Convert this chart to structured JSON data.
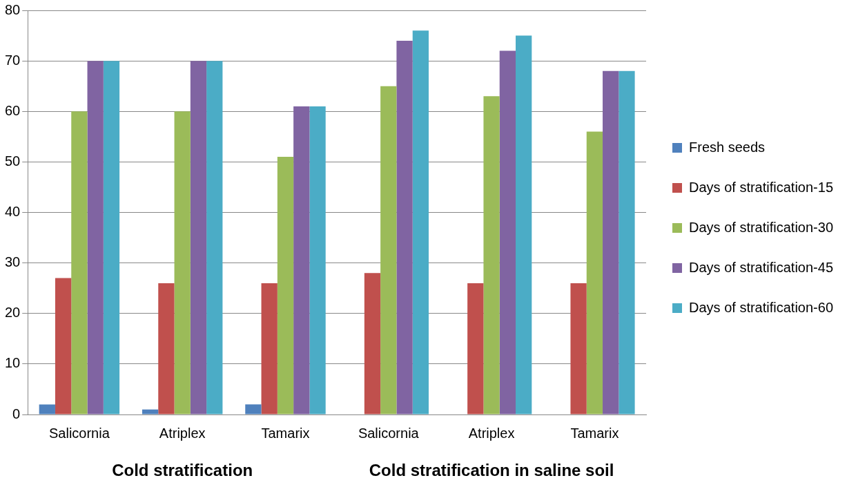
{
  "chart_data": {
    "type": "bar",
    "categories": [
      "Salicornia",
      "Atriplex",
      "Tamarix",
      "Salicornia",
      "Atriplex",
      "Tamarix"
    ],
    "series": [
      {
        "name": "Fresh seeds",
        "color": "#4f81bd",
        "values": [
          2,
          1,
          2,
          0,
          0,
          0
        ]
      },
      {
        "name": "Days of stratification-15",
        "color": "#c0504d",
        "values": [
          27,
          26,
          26,
          28,
          26,
          26
        ]
      },
      {
        "name": "Days of stratification-30",
        "color": "#9bbb59",
        "values": [
          60,
          60,
          51,
          65,
          63,
          56
        ]
      },
      {
        "name": "Days of stratification-45",
        "color": "#8064a2",
        "values": [
          70,
          70,
          61,
          74,
          72,
          68
        ]
      },
      {
        "name": "Days of stratification-60",
        "color": "#4bacc6",
        "values": [
          70,
          70,
          61,
          76,
          75,
          68
        ]
      }
    ],
    "ylim": [
      0,
      80
    ],
    "yticks": [
      0,
      10,
      20,
      30,
      40,
      50,
      60,
      70,
      80
    ],
    "grid": "y",
    "legend": "right",
    "annotations": [
      "Cold stratification",
      "Cold stratification in saline soil"
    ]
  }
}
